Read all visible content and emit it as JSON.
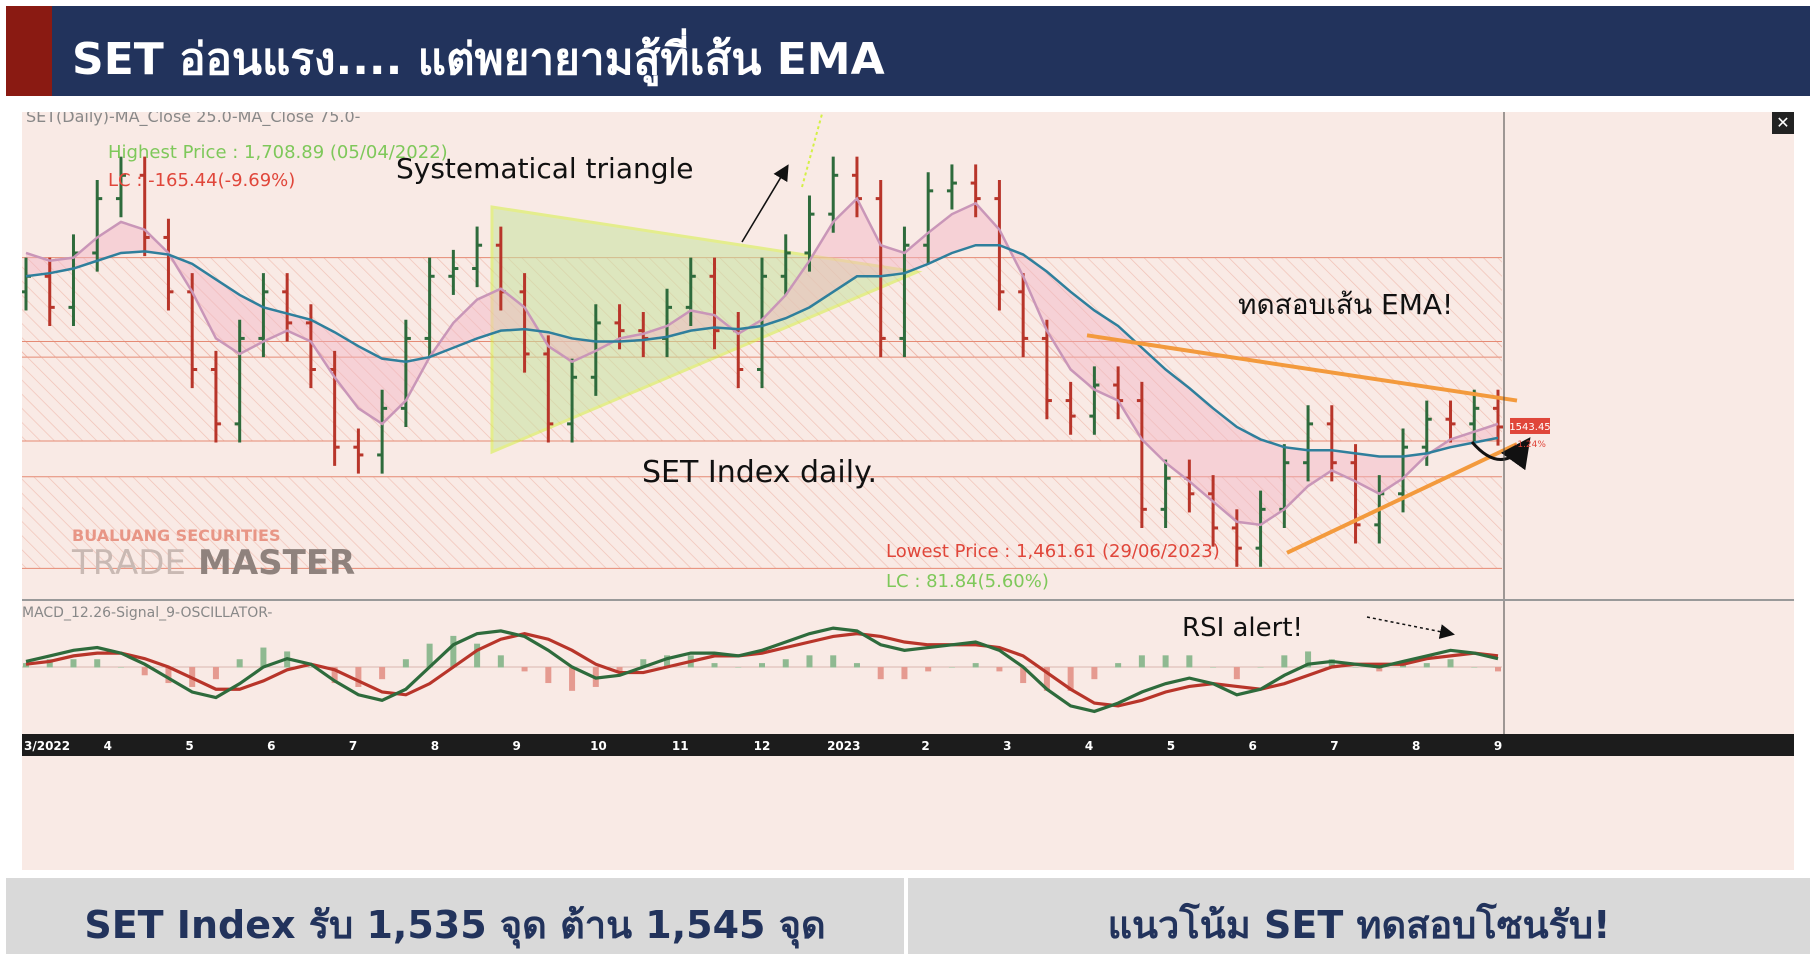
{
  "header": {
    "title": "SET อ่อนแรง.... แต่พยายามสู้ที่เส้น EMA"
  },
  "footer": {
    "left_text": "SET Index รับ 1,535 จุด ต้าน 1,545 จุด",
    "right_text": "แนวโน้ม SET ทดสอบโซนรับ!"
  },
  "colors": {
    "header_bg": "#22335c",
    "header_accent": "#8a1a12",
    "footer_bg": "#d9d9d9",
    "up_bar": "#2e6b3c",
    "down_bar": "#b8352a",
    "ema_fast": "#c996b8",
    "ema_slow": "#2f7f9c",
    "triangle_fill": "#c7e3a0",
    "triangle_line": "#d4f046",
    "trend_line": "#f39a3d",
    "macd_line": "#2e6b3c",
    "signal_line": "#b8352a"
  },
  "chart_data": {
    "type": "ohlc",
    "title": "SET(Daily)-MA_Close 25.0-MA_Close 75.0-",
    "series": [
      {
        "name": "SET Index",
        "values": [
          1640,
          1620,
          1655,
          1690,
          1705,
          1665,
          1630,
          1580,
          1545,
          1600,
          1630,
          1610,
          1580,
          1530,
          1525,
          1555,
          1600,
          1640,
          1645,
          1660,
          1630,
          1590,
          1545,
          1575,
          1610,
          1605,
          1600,
          1620,
          1640,
          1605,
          1580,
          1640,
          1655,
          1680,
          1705,
          1690,
          1600,
          1660,
          1695,
          1700,
          1690,
          1630,
          1600,
          1560,
          1550,
          1570,
          1560,
          1490,
          1510,
          1500,
          1478,
          1465,
          1490,
          1520,
          1545,
          1520,
          1480,
          1500,
          1530,
          1548,
          1545,
          1555,
          1543
        ]
      },
      {
        "name": "MA_Close 25.0",
        "values": [
          1655,
          1650,
          1652,
          1665,
          1675,
          1670,
          1655,
          1630,
          1600,
          1590,
          1598,
          1605,
          1598,
          1575,
          1555,
          1545,
          1560,
          1588,
          1610,
          1625,
          1632,
          1620,
          1595,
          1585,
          1592,
          1600,
          1603,
          1608,
          1618,
          1615,
          1603,
          1612,
          1628,
          1650,
          1675,
          1690,
          1660,
          1655,
          1668,
          1680,
          1687,
          1670,
          1640,
          1605,
          1580,
          1567,
          1560,
          1535,
          1520,
          1508,
          1495,
          1482,
          1480,
          1490,
          1505,
          1515,
          1508,
          1500,
          1510,
          1525,
          1535,
          1540,
          1545
        ]
      },
      {
        "name": "MA_Close 75.0",
        "values": [
          1640,
          1642,
          1645,
          1650,
          1655,
          1656,
          1654,
          1648,
          1638,
          1628,
          1620,
          1616,
          1612,
          1604,
          1595,
          1587,
          1585,
          1588,
          1594,
          1600,
          1605,
          1606,
          1604,
          1600,
          1598,
          1598,
          1599,
          1601,
          1605,
          1607,
          1606,
          1608,
          1613,
          1620,
          1630,
          1640,
          1640,
          1642,
          1648,
          1655,
          1660,
          1660,
          1654,
          1643,
          1630,
          1618,
          1608,
          1594,
          1580,
          1568,
          1555,
          1543,
          1535,
          1530,
          1528,
          1528,
          1526,
          1524,
          1524,
          1526,
          1530,
          1533,
          1536
        ]
      },
      {
        "name": "MACD",
        "values": [
          2,
          4,
          6,
          7,
          5,
          1,
          -4,
          -9,
          -11,
          -6,
          0,
          3,
          1,
          -5,
          -10,
          -12,
          -8,
          0,
          8,
          12,
          13,
          11,
          6,
          0,
          -4,
          -3,
          0,
          3,
          5,
          5,
          4,
          6,
          9,
          12,
          14,
          13,
          8,
          6,
          7,
          8,
          9,
          6,
          0,
          -8,
          -14,
          -16,
          -13,
          -9,
          -6,
          -4,
          -6,
          -10,
          -8,
          -3,
          1,
          2,
          1,
          0,
          2,
          4,
          6,
          5,
          3
        ]
      },
      {
        "name": "Signal",
        "values": [
          1,
          2,
          4,
          5,
          5,
          3,
          0,
          -4,
          -8,
          -8,
          -5,
          -1,
          1,
          -1,
          -5,
          -9,
          -10,
          -6,
          0,
          6,
          10,
          12,
          10,
          6,
          1,
          -2,
          -2,
          0,
          2,
          4,
          4,
          5,
          7,
          9,
          11,
          12,
          11,
          9,
          8,
          8,
          8,
          7,
          4,
          -2,
          -8,
          -13,
          -14,
          -12,
          -9,
          -7,
          -6,
          -7,
          -8,
          -6,
          -3,
          0,
          1,
          1,
          1,
          3,
          4,
          5,
          4
        ]
      }
    ],
    "x_ticks": [
      "3/2022",
      "4",
      "5",
      "6",
      "7",
      "8",
      "9",
      "10",
      "11",
      "12",
      "2023",
      "2",
      "3",
      "4",
      "5",
      "6",
      "7",
      "8",
      "9"
    ],
    "resistance_zones": [
      [
        1588,
        1652
      ],
      [
        1534,
        1598
      ],
      [
        1452,
        1511
      ]
    ],
    "highest_price_label": "Highest Price : 1,708.89 (05/04/2022)",
    "highest_lc_label": "LC : -165.44(-9.69%)",
    "lowest_price_label": "Lowest Price : 1,461.61 (29/06/2023)",
    "lowest_lc_label": "LC : 81.84(5.60%)",
    "last_price_label": "1543.45",
    "last_change_label": "-1.24%",
    "annotations": {
      "triangle": "Systematical triangle",
      "index_label": "SET Index daily.",
      "ema_test": "ทดสอบเส้น EMA!",
      "rsi_alert": "RSI alert!"
    },
    "macd_title": "MACD_12.26-Signal_9-OSCILLATOR-",
    "watermark_top": "BUALUANG SECURITIES",
    "watermark_brand_a": "TRADE",
    "watermark_brand_b": "MASTER"
  }
}
